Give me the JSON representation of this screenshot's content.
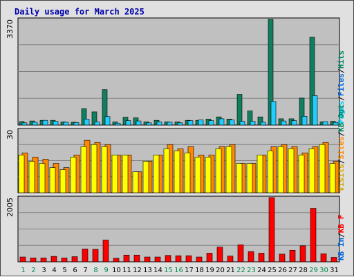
{
  "chart_data": {
    "type": "bar",
    "title": "Daily usage for March 2025",
    "categories": [
      "1",
      "2",
      "3",
      "4",
      "5",
      "6",
      "7",
      "8",
      "9",
      "10",
      "11",
      "12",
      "13",
      "14",
      "15",
      "16",
      "17",
      "18",
      "19",
      "20",
      "21",
      "22",
      "23",
      "24",
      "25",
      "26",
      "27",
      "28",
      "29",
      "30",
      "31"
    ],
    "weekend_days": [
      "1",
      "2",
      "8",
      "9",
      "15",
      "16",
      "22",
      "23",
      "29",
      "30"
    ],
    "panels": [
      {
        "name": "hits",
        "ymax": 3370,
        "ymax_label": "3370",
        "axis_label": [
          {
            "text": "Pages",
            "color": "#00ccee"
          },
          {
            "text": "Files",
            "color": "#0066dd"
          },
          {
            "text": "Hits",
            "color": "#008866"
          }
        ],
        "series": [
          {
            "name": "Hits",
            "color": "#117f5f",
            "values": [
              110,
              130,
              150,
              150,
              100,
              90,
              520,
              420,
              1130,
              100,
              250,
              230,
              100,
              150,
              100,
              100,
              150,
              150,
              190,
              260,
              190,
              980,
              450,
              260,
              3370,
              200,
              200,
              860,
              2800,
              100,
              120
            ]
          },
          {
            "name": "Pages",
            "color": "#22ccff",
            "values": [
              70,
              90,
              150,
              120,
              90,
              80,
              190,
              100,
              270,
              60,
              140,
              130,
              70,
              100,
              90,
              70,
              140,
              160,
              140,
              200,
              160,
              120,
              120,
              90,
              750,
              130,
              140,
              280,
              940,
              110,
              80
            ]
          }
        ]
      },
      {
        "name": "visits",
        "ymax": 30,
        "ymax_label": "30",
        "axis_label": [
          {
            "text": "Visits",
            "color": "#ccaa00"
          },
          {
            "text": "Sites",
            "color": "#ff8800"
          },
          {
            "text": "KB Out",
            "color": "#008866"
          }
        ],
        "series": [
          {
            "name": "Visits",
            "color": "#ffff00",
            "values": [
              19,
              17,
              16,
              14,
              12,
              18,
              25,
              24,
              23,
              18,
              18,
              10,
              15,
              18,
              23,
              21,
              22,
              18,
              18,
              22,
              23,
              14,
              14,
              18,
              22,
              23,
              22,
              19,
              22,
              24,
              15
            ]
          },
          {
            "name": "Sites",
            "color": "#ff8800",
            "values": [
              18,
              15,
              14,
              12,
              11,
              17,
              22,
              23,
              22,
              18,
              18,
              10,
              15,
              18,
              21,
              20,
              19,
              17,
              17,
              21,
              22,
              14,
              14,
              18,
              20,
              22,
              21,
              18,
              21,
              23,
              14
            ]
          }
        ]
      },
      {
        "name": "kbytes",
        "ymax": 2005,
        "ymax_label": "2005",
        "axis_label": [
          {
            "text": "KB In",
            "color": "#0066dd"
          },
          {
            "text": "KB F",
            "color": "#ff0000"
          }
        ],
        "series": [
          {
            "name": "KB F",
            "color": "#ff0000",
            "values": [
              150,
              120,
              120,
              170,
              120,
              160,
              400,
              390,
              680,
              110,
              210,
              210,
              150,
              150,
              200,
              190,
              190,
              150,
              270,
              460,
              180,
              530,
              320,
              270,
              2005,
              240,
              360,
              500,
              1670,
              250,
              140
            ]
          }
        ]
      }
    ]
  }
}
